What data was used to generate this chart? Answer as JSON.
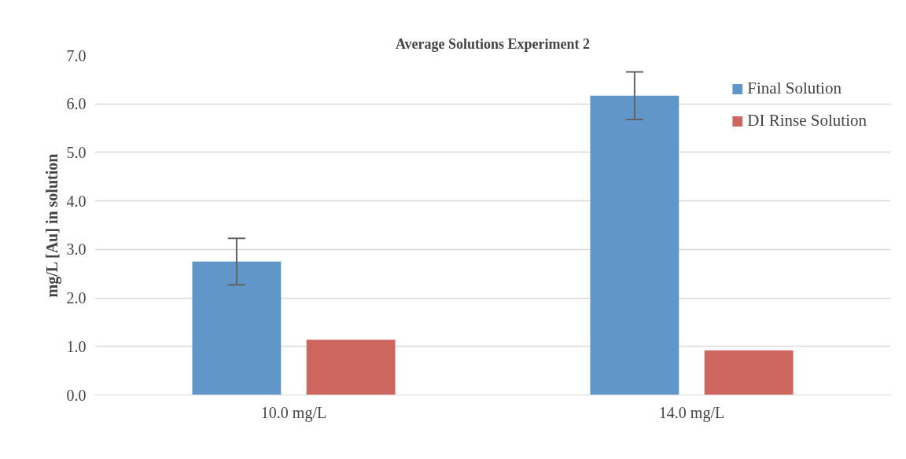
{
  "chart_data": {
    "type": "bar",
    "title": "Average Solutions Experiment 2",
    "ylabel": "mg/L [Au] in solution",
    "categories": [
      "10.0 mg/L",
      "14.0 mg/L"
    ],
    "series": [
      {
        "name": "Final Solution",
        "color": "#6196c8",
        "values": [
          2.75,
          6.17
        ],
        "errors": [
          0.48,
          0.49
        ]
      },
      {
        "name": "DI Rinse Solution",
        "color": "#cd665f",
        "values": [
          1.14,
          0.92
        ]
      }
    ],
    "ylim": [
      0,
      7
    ],
    "yticks": [
      {
        "value": 0,
        "label": "0.0"
      },
      {
        "value": 1,
        "label": "1.0"
      },
      {
        "value": 2,
        "label": "2.0"
      },
      {
        "value": 3,
        "label": "3.0"
      },
      {
        "value": 4,
        "label": "4.0"
      },
      {
        "value": 5,
        "label": "5.0"
      },
      {
        "value": 6,
        "label": "6.0"
      },
      {
        "value": 7,
        "label": "7.0"
      }
    ],
    "grid": "y",
    "legend": "top right"
  }
}
